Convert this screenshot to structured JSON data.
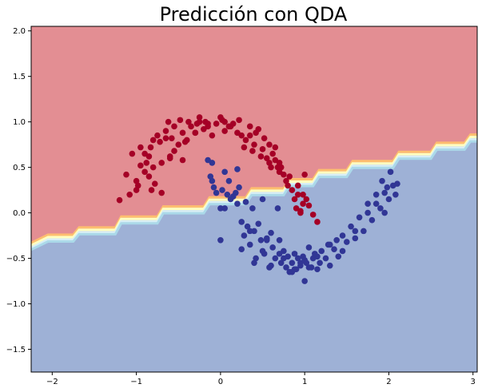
{
  "chart_data": {
    "type": "scatter",
    "title": "Predicción con QDA",
    "xlabel": "",
    "ylabel": "",
    "xlim": [
      -2.25,
      3.05
    ],
    "ylim": [
      -1.75,
      2.05
    ],
    "grid": false,
    "legend": "none",
    "x_ticks": [
      -2,
      -1,
      0,
      1,
      2,
      3
    ],
    "x_tick_labels": [
      "−2",
      "−1",
      "0",
      "1",
      "2",
      "3"
    ],
    "y_ticks": [
      -1.5,
      -1.0,
      -0.5,
      0.0,
      0.5,
      1.0,
      1.5,
      2.0
    ],
    "y_tick_labels": [
      "−1.5",
      "−1.0",
      "−0.5",
      "0.0",
      "0.5",
      "1.0",
      "1.5",
      "2.0"
    ],
    "colors": {
      "region_upper": "#e38e93",
      "region_lower": "#9eb1d6",
      "class_0": "#a50026",
      "class_1": "#313695",
      "band": [
        "#fdbe6f",
        "#ffffbf",
        "#d8eef5",
        "#abd9e9"
      ]
    },
    "decision_boundary": {
      "x": [
        -2.25,
        -2.05,
        -1.75,
        -1.68,
        -1.25,
        -1.18,
        -0.75,
        -0.68,
        -0.2,
        -0.13,
        0.3,
        0.37,
        0.75,
        0.82,
        1.1,
        1.17,
        1.5,
        1.57,
        2.05,
        2.12,
        2.5,
        2.57,
        2.9,
        2.97,
        3.05
      ],
      "y": [
        -0.37,
        -0.28,
        -0.28,
        -0.2,
        -0.2,
        -0.08,
        -0.08,
        0.03,
        0.03,
        0.13,
        0.13,
        0.23,
        0.23,
        0.33,
        0.33,
        0.43,
        0.43,
        0.53,
        0.53,
        0.63,
        0.63,
        0.73,
        0.73,
        0.82,
        0.82
      ]
    },
    "series": [
      {
        "class": 0,
        "x": [
          -1.2,
          -1.12,
          -1.08,
          -1.0,
          -1.05,
          -0.95,
          -0.98,
          -0.9,
          -0.88,
          -0.85,
          -0.83,
          -0.82,
          -0.8,
          -0.78,
          -0.75,
          -0.72,
          -0.7,
          -0.65,
          -0.62,
          -0.6,
          -0.58,
          -0.55,
          -0.5,
          -0.48,
          -0.45,
          -0.4,
          -0.38,
          -0.35,
          -0.3,
          -0.28,
          -0.25,
          -0.2,
          -0.18,
          -0.15,
          -0.1,
          -0.05,
          0.0,
          0.05,
          0.1,
          0.15,
          0.2,
          0.22,
          0.25,
          0.3,
          0.35,
          0.4,
          0.42,
          0.45,
          0.5,
          0.52,
          0.55,
          0.58,
          0.6,
          0.62,
          0.65,
          0.7,
          0.72,
          0.75,
          0.78,
          0.8,
          0.85,
          0.88,
          0.9,
          0.92,
          0.95,
          0.98,
          1.0,
          1.05,
          1.1,
          1.15,
          -1.0,
          -0.9,
          -0.85,
          -0.7,
          -0.55,
          -0.45,
          -0.3,
          -0.15,
          0.02,
          0.12,
          0.28,
          0.38,
          0.48,
          0.58,
          0.68,
          0.82,
          0.92,
          1.02,
          -0.65,
          -0.42,
          -0.25,
          0.05,
          0.35,
          0.65,
          0.95,
          -0.95,
          -0.8,
          -0.6,
          0.7,
          0.98
        ],
        "y": [
          0.14,
          0.42,
          0.2,
          0.35,
          0.65,
          0.52,
          0.3,
          0.45,
          0.55,
          0.62,
          0.72,
          0.25,
          0.5,
          0.32,
          0.85,
          0.78,
          0.55,
          0.9,
          1.0,
          0.62,
          0.82,
          0.95,
          0.75,
          1.02,
          0.88,
          0.8,
          1.0,
          0.95,
          0.88,
          0.98,
          1.05,
          0.92,
          1.0,
          0.95,
          0.85,
          0.98,
          1.05,
          1.0,
          0.95,
          0.98,
          0.88,
          1.02,
          0.85,
          0.8,
          0.95,
          0.75,
          0.88,
          0.92,
          0.7,
          0.82,
          0.6,
          0.75,
          0.5,
          0.65,
          0.72,
          0.55,
          0.5,
          0.42,
          0.35,
          0.3,
          0.25,
          0.15,
          0.05,
          0.3,
          0.0,
          0.2,
          0.42,
          0.08,
          -0.02,
          -0.1,
          0.25,
          0.65,
          0.4,
          0.22,
          0.68,
          0.58,
          0.88,
          0.98,
          1.02,
          0.95,
          0.72,
          0.68,
          0.62,
          0.55,
          0.5,
          0.4,
          0.2,
          0.15,
          0.82,
          0.78,
          1.0,
          0.9,
          0.85,
          0.58,
          0.02,
          0.72,
          0.8,
          0.6,
          0.45,
          0.1
        ]
      },
      {
        "class": 1,
        "x": [
          -0.15,
          -0.12,
          -0.1,
          -0.08,
          -0.05,
          0.0,
          0.02,
          0.05,
          0.08,
          0.1,
          0.12,
          0.15,
          0.18,
          0.2,
          0.22,
          0.25,
          0.28,
          0.3,
          0.32,
          0.35,
          0.38,
          0.4,
          0.42,
          0.45,
          0.48,
          0.5,
          0.52,
          0.55,
          0.58,
          0.6,
          0.62,
          0.65,
          0.68,
          0.7,
          0.72,
          0.75,
          0.78,
          0.8,
          0.82,
          0.85,
          0.88,
          0.9,
          0.92,
          0.95,
          0.98,
          1.0,
          1.02,
          1.05,
          1.08,
          1.1,
          1.12,
          1.15,
          1.18,
          1.2,
          1.25,
          1.28,
          1.3,
          1.35,
          1.38,
          1.4,
          1.45,
          1.5,
          1.55,
          1.6,
          1.65,
          1.7,
          1.75,
          1.8,
          1.85,
          1.9,
          1.92,
          1.95,
          1.98,
          2.0,
          2.02,
          2.05,
          2.08,
          0.0,
          0.05,
          0.2,
          0.25,
          0.4,
          0.5,
          0.6,
          0.75,
          0.85,
          0.95,
          1.05,
          1.15,
          1.3,
          1.45,
          1.6,
          1.75,
          1.85,
          1.95,
          2.1,
          -0.1,
          0.15,
          0.35,
          0.55,
          0.7,
          0.88,
          1.0
        ],
        "y": [
          0.58,
          0.4,
          0.55,
          0.28,
          0.22,
          0.05,
          0.25,
          0.45,
          0.2,
          0.35,
          0.15,
          0.18,
          0.22,
          0.1,
          0.28,
          -0.1,
          -0.25,
          0.12,
          -0.15,
          -0.35,
          0.05,
          -0.2,
          -0.5,
          -0.12,
          -0.3,
          0.15,
          -0.45,
          -0.28,
          -0.6,
          -0.22,
          -0.38,
          -0.5,
          0.05,
          -0.3,
          -0.55,
          -0.42,
          -0.6,
          -0.48,
          -0.65,
          -0.55,
          -0.45,
          -0.62,
          -0.5,
          -0.58,
          -0.48,
          -0.75,
          -0.55,
          -0.38,
          -0.6,
          -0.5,
          -0.45,
          -0.62,
          -0.55,
          -0.42,
          -0.5,
          -0.35,
          -0.58,
          -0.4,
          -0.3,
          -0.48,
          -0.25,
          -0.32,
          -0.15,
          -0.28,
          -0.05,
          -0.2,
          0.1,
          -0.08,
          0.2,
          0.05,
          0.35,
          0.0,
          0.28,
          0.15,
          0.45,
          0.3,
          0.2,
          -0.3,
          0.05,
          0.48,
          -0.4,
          -0.55,
          -0.42,
          -0.58,
          -0.5,
          -0.65,
          -0.55,
          -0.6,
          -0.48,
          -0.35,
          -0.42,
          -0.2,
          0.0,
          0.1,
          0.22,
          0.32,
          0.35,
          0.18,
          -0.2,
          -0.3,
          -0.45,
          -0.62,
          -0.52
        ]
      }
    ]
  }
}
